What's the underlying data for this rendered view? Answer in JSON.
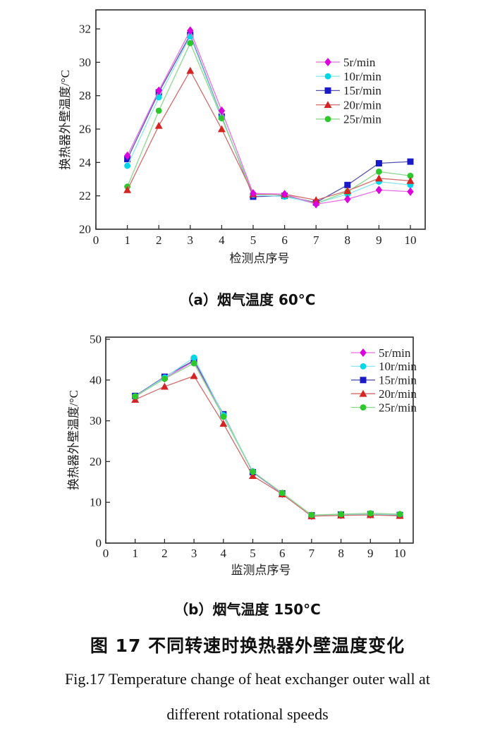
{
  "captions": {
    "sub_a": "（a）烟气温度 60°C",
    "sub_b": "（b）烟气温度 150°C",
    "figure_cn": "图 17 不同转速时换热器外壁温度变化",
    "figure_en_line1": "Fig.17 Temperature change of heat exchanger outer wall at",
    "figure_en_line2": "different rotational speeds"
  },
  "chart_data": [
    {
      "type": "line",
      "title": "（a）烟气温度 60°C",
      "xlabel": "检测点序号",
      "ylabel": "换热器外壁温度/°C",
      "x": [
        1,
        2,
        3,
        4,
        5,
        6,
        7,
        8,
        9,
        10
      ],
      "xlim": [
        0,
        10.5
      ],
      "ylim": [
        20,
        32
      ],
      "xticks": [
        0,
        1,
        2,
        3,
        4,
        5,
        6,
        7,
        8,
        9,
        10
      ],
      "yticks": [
        20,
        22,
        24,
        26,
        28,
        30,
        32
      ],
      "grid": false,
      "legend_position": "inside-upper-right",
      "series": [
        {
          "name": "5r/min",
          "marker": "diamond",
          "color": "#dc00dc",
          "line_color": "#e66ee6",
          "values": [
            24.4,
            28.3,
            31.9,
            27.1,
            22.15,
            22.1,
            21.5,
            21.8,
            22.35,
            22.25
          ]
        },
        {
          "name": "10r/min",
          "marker": "circle",
          "color": "#00d8e8",
          "line_color": "#8fe4ef",
          "values": [
            23.8,
            27.9,
            31.55,
            26.7,
            22.05,
            21.95,
            21.55,
            22.1,
            22.85,
            22.65
          ]
        },
        {
          "name": "15r/min",
          "marker": "square",
          "color": "#1a1ac8",
          "line_color": "#5555b0",
          "values": [
            24.2,
            28.2,
            31.65,
            26.75,
            21.95,
            22.0,
            21.6,
            22.65,
            23.95,
            24.05
          ]
        },
        {
          "name": "20r/min",
          "marker": "triangle",
          "color": "#d42424",
          "line_color": "#d26a6a",
          "values": [
            22.35,
            26.2,
            29.5,
            26.0,
            22.1,
            22.1,
            21.75,
            22.3,
            23.05,
            22.9
          ]
        },
        {
          "name": "25r/min",
          "marker": "circle",
          "color": "#2cc82c",
          "line_color": "#8ed88e",
          "values": [
            22.55,
            27.1,
            31.15,
            26.65,
            22.1,
            22.05,
            21.55,
            22.25,
            23.45,
            23.2
          ]
        }
      ]
    },
    {
      "type": "line",
      "title": "（b）烟气温度 150°C",
      "xlabel": "监测点序号",
      "ylabel": "换热器外壁温度/°C",
      "x": [
        1,
        2,
        3,
        4,
        5,
        6,
        7,
        8,
        9,
        10
      ],
      "xlim": [
        0,
        10.5
      ],
      "ylim": [
        0,
        50
      ],
      "xticks": [
        0,
        1,
        2,
        3,
        4,
        5,
        6,
        7,
        8,
        9,
        10
      ],
      "yticks": [
        0,
        10,
        20,
        30,
        40,
        50
      ],
      "grid": false,
      "legend_position": "inside-upper-right",
      "series": [
        {
          "name": "5r/min",
          "marker": "diamond",
          "color": "#dc00dc",
          "line_color": "#e66ee6",
          "values": [
            35.9,
            40.4,
            44.6,
            31.2,
            17.4,
            12.1,
            6.7,
            6.9,
            7.0,
            6.9
          ]
        },
        {
          "name": "10r/min",
          "marker": "circle",
          "color": "#00d8e8",
          "line_color": "#8fe4ef",
          "values": [
            36.0,
            40.6,
            45.5,
            31.4,
            17.6,
            12.2,
            6.8,
            7.0,
            7.1,
            7.0
          ]
        },
        {
          "name": "15r/min",
          "marker": "square",
          "color": "#1a1ac8",
          "line_color": "#5555b0",
          "values": [
            36.1,
            40.8,
            44.8,
            31.6,
            17.4,
            12.2,
            6.8,
            7.0,
            7.1,
            6.9
          ]
        },
        {
          "name": "20r/min",
          "marker": "triangle",
          "color": "#d42424",
          "line_color": "#d26a6a",
          "values": [
            35.2,
            38.4,
            41.0,
            29.3,
            16.5,
            12.0,
            6.6,
            6.8,
            6.9,
            6.7
          ]
        },
        {
          "name": "25r/min",
          "marker": "circle",
          "color": "#2cc82c",
          "line_color": "#8ed88e",
          "values": [
            36.0,
            40.3,
            44.1,
            31.0,
            17.5,
            12.3,
            6.9,
            7.1,
            7.3,
            7.1
          ]
        }
      ]
    }
  ]
}
